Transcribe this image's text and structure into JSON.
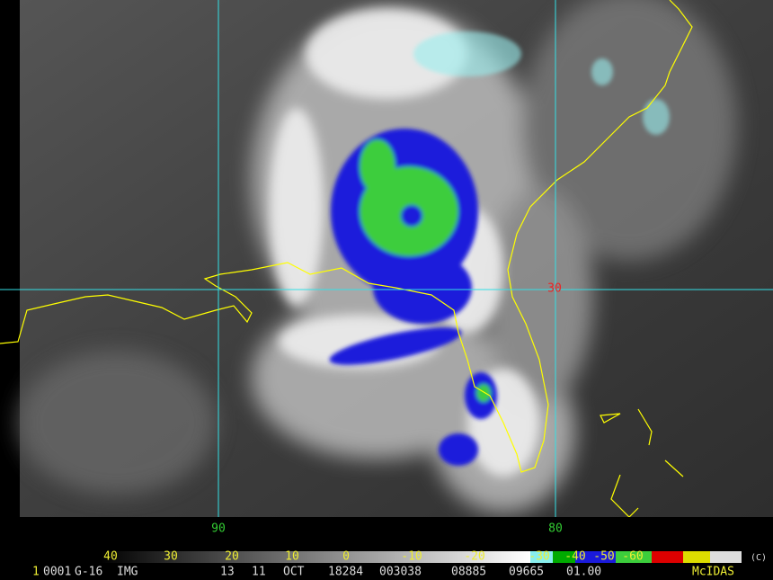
{
  "map": {
    "longitude_labels": [
      "90",
      "80"
    ],
    "latitude_labels": [
      "30"
    ],
    "color_scale": {
      "labels": [
        "40",
        "30",
        "20",
        "10",
        "0",
        "-10",
        "-20",
        "-30",
        "-40",
        "-50",
        "-60"
      ]
    },
    "status_bar": {
      "fields": [
        "1",
        "0001",
        "G-16",
        "IMG",
        "13",
        "11",
        "OCT",
        "18284",
        "003038",
        "08885",
        "09665",
        "01.00",
        "McIDAS"
      ]
    },
    "copyright": "(C)"
  }
}
